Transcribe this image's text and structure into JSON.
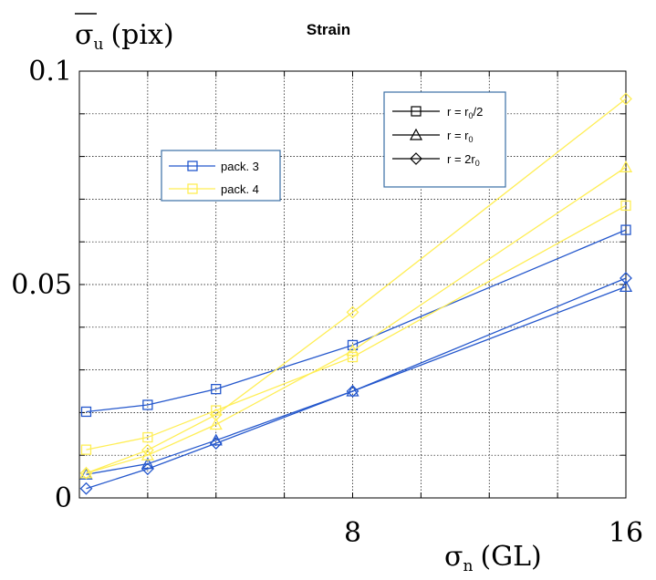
{
  "chart_data": {
    "type": "line",
    "title": "Strain",
    "ylabel_main": "σ",
    "ylabel_sub": "u",
    "ylabel_unit": "(pix)",
    "xlabel_main": "σ",
    "xlabel_sub": "n",
    "xlabel_unit": "(GL)",
    "xlim": [
      0,
      16
    ],
    "ylim": [
      0,
      0.1
    ],
    "xticks": [
      0,
      2,
      4,
      6,
      8,
      10,
      12,
      14,
      16
    ],
    "yticks": [
      0,
      0.01,
      0.02,
      0.03,
      0.04,
      0.05,
      0.06,
      0.07,
      0.08,
      0.09,
      0.1
    ],
    "xtick_labels": [
      {
        "value": 8,
        "label": "8"
      },
      {
        "value": 16,
        "label": "16"
      }
    ],
    "ytick_labels": [
      {
        "value": 0,
        "label": "0"
      },
      {
        "value": 0.05,
        "label": "0.05"
      },
      {
        "value": 0.1,
        "label": "0.1"
      }
    ],
    "grid": true,
    "legend_packages": {
      "placement": "upper-left",
      "entries": [
        {
          "label": "pack. 3",
          "color": "#2457cc"
        },
        {
          "label": "pack. 4",
          "color": "#ffee55"
        }
      ]
    },
    "legend_radius": {
      "placement": "top-center",
      "entries": [
        {
          "marker": "square",
          "label_main": "r = r",
          "label_sub": "0",
          "label_tail": "/2"
        },
        {
          "marker": "triangle",
          "label_main": "r = r",
          "label_sub": "0",
          "label_tail": ""
        },
        {
          "marker": "diamond",
          "label_main": "r = 2r",
          "label_sub": "0",
          "label_tail": ""
        }
      ]
    },
    "series": [
      {
        "package": "pack. 3",
        "marker": "square",
        "color": "#2457cc",
        "x": [
          0.2,
          2,
          4,
          8,
          16
        ],
        "y": [
          0.0202,
          0.0218,
          0.0255,
          0.0358,
          0.0628
        ]
      },
      {
        "package": "pack. 3",
        "marker": "triangle",
        "color": "#2457cc",
        "x": [
          0.2,
          2,
          4,
          8,
          16
        ],
        "y": [
          0.0055,
          0.008,
          0.0135,
          0.025,
          0.0495
        ]
      },
      {
        "package": "pack. 3",
        "marker": "diamond",
        "color": "#2457cc",
        "x": [
          0.2,
          2,
          4,
          8,
          16
        ],
        "y": [
          0.0022,
          0.0068,
          0.0128,
          0.025,
          0.0515
        ]
      },
      {
        "package": "pack. 4",
        "marker": "square",
        "color": "#ffee55",
        "x": [
          0.2,
          2,
          4,
          8,
          16
        ],
        "y": [
          0.0113,
          0.0142,
          0.0205,
          0.033,
          0.0685
        ]
      },
      {
        "package": "pack. 4",
        "marker": "triangle",
        "color": "#ffee55",
        "x": [
          0.2,
          2,
          4,
          8,
          16
        ],
        "y": [
          0.0058,
          0.01,
          0.0172,
          0.0345,
          0.0775
        ]
      },
      {
        "package": "pack. 4",
        "marker": "diamond",
        "color": "#ffee55",
        "x": [
          0.2,
          2,
          4,
          8,
          16
        ],
        "y": [
          0.0058,
          0.0112,
          0.0195,
          0.0435,
          0.0935
        ]
      }
    ]
  }
}
